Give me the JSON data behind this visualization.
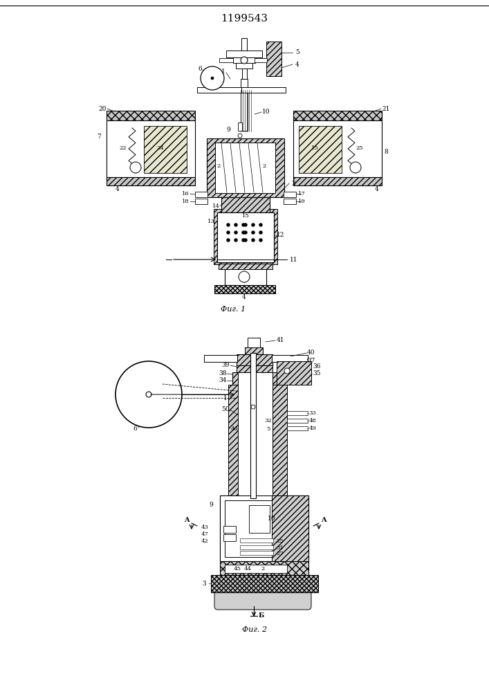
{
  "title": "1199543",
  "fig1_label": "Фиг. 1",
  "fig2_label": "Фиг. 2",
  "background_color": "#ffffff",
  "line_color": "#000000",
  "fig_width": 7.07,
  "fig_height": 10.0,
  "dpi": 100
}
